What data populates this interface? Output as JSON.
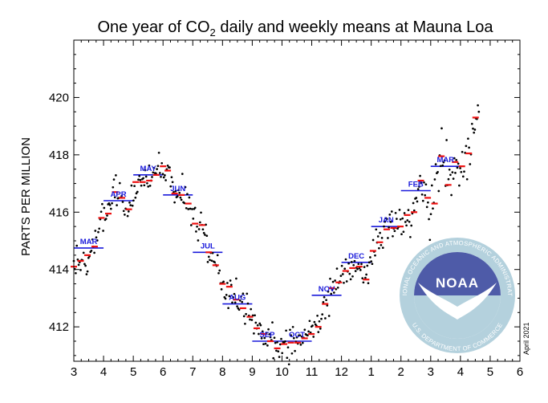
{
  "chart_data": {
    "type": "scatter",
    "title_prefix": "One year of CO",
    "title_sub": "2",
    "title_suffix": " daily and weekly means at Mauna Loa",
    "ylabel": "PARTS PER MILLION",
    "xlim": [
      3,
      6
    ],
    "ylim": [
      410.8,
      422
    ],
    "x_ticks": [
      "3",
      "4",
      "5",
      "6",
      "7",
      "8",
      "9",
      "10",
      "11",
      "12",
      "1",
      "2",
      "3",
      "4",
      "5",
      "6"
    ],
    "y_ticks": [
      412,
      414,
      416,
      418,
      420
    ],
    "credit": "April 2021",
    "monthly_means": [
      {
        "label": "MAR",
        "x0": 3.0,
        "x1": 4.0,
        "y": 414.75
      },
      {
        "label": "APR",
        "x0": 4.0,
        "x1": 5.0,
        "y": 416.4
      },
      {
        "label": "MAY",
        "x0": 5.0,
        "x1": 6.0,
        "y": 417.3
      },
      {
        "label": "JUN",
        "x0": 6.0,
        "x1": 7.0,
        "y": 416.6
      },
      {
        "label": "JUL",
        "x0": 7.0,
        "x1": 8.0,
        "y": 414.6
      },
      {
        "label": "AUG",
        "x0": 8.0,
        "x1": 9.0,
        "y": 412.8
      },
      {
        "label": "SEP",
        "x0": 9.0,
        "x1": 10.0,
        "y": 411.5
      },
      {
        "label": "OCT",
        "x0": 10.0,
        "x1": 11.0,
        "y": 411.5
      },
      {
        "label": "NOV",
        "x0": 11.0,
        "x1": 12.0,
        "y": 413.1
      },
      {
        "label": "DEC",
        "x0": 12.0,
        "x1": 13.0,
        "y": 414.25
      },
      {
        "label": "JAN",
        "x0": 13.0,
        "x1": 14.0,
        "y": 415.5
      },
      {
        "label": "FEB",
        "x0": 14.0,
        "x1": 15.0,
        "y": 416.75
      },
      {
        "label": "MAR",
        "x0": 15.0,
        "x1": 16.0,
        "y": 417.6
      }
    ],
    "weekly_means": [
      [
        3.0,
        414.1
      ],
      [
        3.23,
        414.3
      ],
      [
        3.46,
        414.5
      ],
      [
        3.7,
        414.8
      ],
      [
        3.93,
        415.8
      ],
      [
        4.16,
        415.95
      ],
      [
        4.39,
        416.7
      ],
      [
        4.62,
        416.5
      ],
      [
        4.85,
        416.1
      ],
      [
        5.08,
        417.05
      ],
      [
        5.31,
        417.05
      ],
      [
        5.54,
        417.1
      ],
      [
        5.77,
        417.3
      ],
      [
        6.0,
        417.6
      ],
      [
        6.16,
        417.45
      ],
      [
        6.39,
        416.65
      ],
      [
        6.62,
        416.6
      ],
      [
        6.85,
        416.3
      ],
      [
        7.08,
        415.6
      ],
      [
        7.31,
        415.55
      ],
      [
        7.54,
        414.6
      ],
      [
        7.77,
        414.15
      ],
      [
        8.0,
        413.5
      ],
      [
        8.23,
        413.4
      ],
      [
        8.46,
        412.95
      ],
      [
        8.69,
        412.65
      ],
      [
        8.92,
        412.35
      ],
      [
        9.15,
        411.95
      ],
      [
        9.38,
        411.75
      ],
      [
        9.61,
        411.5
      ],
      [
        9.84,
        411.25
      ],
      [
        10.07,
        411.4
      ],
      [
        10.3,
        411.45
      ],
      [
        10.53,
        411.45
      ],
      [
        10.76,
        411.6
      ],
      [
        10.99,
        411.75
      ],
      [
        11.22,
        412.0
      ],
      [
        11.45,
        412.8
      ],
      [
        11.68,
        413.35
      ],
      [
        11.91,
        413.55
      ],
      [
        12.14,
        413.95
      ],
      [
        12.37,
        414.05
      ],
      [
        12.6,
        414.1
      ],
      [
        12.83,
        413.65
      ],
      [
        13.06,
        414.65
      ],
      [
        13.29,
        414.95
      ],
      [
        13.52,
        415.4
      ],
      [
        13.75,
        415.45
      ],
      [
        13.98,
        415.5
      ],
      [
        14.21,
        415.9
      ],
      [
        14.44,
        416.0
      ],
      [
        14.67,
        417.1
      ],
      [
        14.9,
        416.5
      ],
      [
        15.13,
        416.3
      ],
      [
        15.36,
        417.95
      ],
      [
        15.59,
        416.95
      ],
      [
        15.82,
        417.75
      ],
      [
        16.05,
        417.6
      ],
      [
        16.28,
        418.05
      ],
      [
        16.51,
        419.3
      ]
    ],
    "daily_seed": 20210401
  }
}
